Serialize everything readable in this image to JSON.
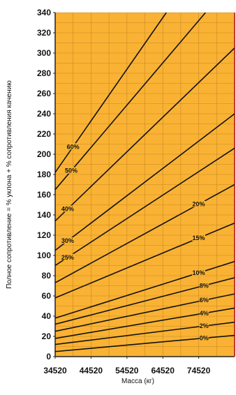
{
  "chart_data": {
    "type": "line",
    "xlabel": "Масса (кг)",
    "ylabel": "Полное сопротивление = % уклона + % сопротивления качению",
    "xlim": [
      34520,
      84520
    ],
    "ylim": [
      0,
      340
    ],
    "xticks": [
      {
        "value": 34520,
        "label": "34520"
      },
      {
        "value": 44520,
        "label": "44520"
      },
      {
        "value": 54520,
        "label": "54520"
      },
      {
        "value": 64520,
        "label": "64520"
      },
      {
        "value": 74520,
        "label": "74520"
      }
    ],
    "yticks": [
      {
        "value": 0,
        "label": "0"
      },
      {
        "value": 20,
        "label": "20"
      },
      {
        "value": 40,
        "label": "40"
      },
      {
        "value": 60,
        "label": "60"
      },
      {
        "value": 80,
        "label": "80"
      },
      {
        "value": 100,
        "label": "100"
      },
      {
        "value": 120,
        "label": "120"
      },
      {
        "value": 140,
        "label": "140"
      },
      {
        "value": 160,
        "label": "160"
      },
      {
        "value": 180,
        "label": "180"
      },
      {
        "value": 200,
        "label": "200"
      },
      {
        "value": 220,
        "label": "220"
      },
      {
        "value": 240,
        "label": "240"
      },
      {
        "value": 260,
        "label": "260"
      },
      {
        "value": 280,
        "label": "280"
      },
      {
        "value": 300,
        "label": "300"
      },
      {
        "value": 320,
        "label": "320"
      },
      {
        "value": 340,
        "label": "340"
      }
    ],
    "grid": true,
    "background_color": "#F9B233",
    "line_color": "#111111",
    "border_right_color": "#C0392B",
    "series": [
      {
        "name": "0%",
        "x": [
          34520,
          84520
        ],
        "y": [
          5,
          21
        ],
        "label_at": 76000
      },
      {
        "name": "2%",
        "x": [
          34520,
          84520
        ],
        "y": [
          12,
          34
        ],
        "label_at": 76000
      },
      {
        "name": "4%",
        "x": [
          34520,
          84520
        ],
        "y": [
          18,
          48
        ],
        "label_at": 76000
      },
      {
        "name": "6%",
        "x": [
          34520,
          84520
        ],
        "y": [
          25,
          62
        ],
        "label_at": 76000
      },
      {
        "name": "8%",
        "x": [
          34520,
          84520
        ],
        "y": [
          32,
          78
        ],
        "label_at": 76000
      },
      {
        "name": "10%",
        "x": [
          34520,
          84520
        ],
        "y": [
          38,
          94
        ],
        "label_at": 74500
      },
      {
        "name": "15%",
        "x": [
          34520,
          84520
        ],
        "y": [
          58,
          132
        ],
        "label_at": 74500
      },
      {
        "name": "20%",
        "x": [
          34520,
          84520
        ],
        "y": [
          73,
          170
        ],
        "label_at": 74500
      },
      {
        "name": "25%",
        "x": [
          34520,
          84520
        ],
        "y": [
          90,
          206
        ],
        "label_at": 38000
      },
      {
        "name": "30%",
        "x": [
          34520,
          84520
        ],
        "y": [
          105,
          240
        ],
        "label_at": 38000
      },
      {
        "name": "40%",
        "x": [
          34520,
          84520
        ],
        "y": [
          134,
          305
        ],
        "label_at": 38000
      },
      {
        "name": "50%",
        "x": [
          34520,
          76420
        ],
        "y": [
          165,
          340
        ],
        "label_at": 39000
      },
      {
        "name": "60%",
        "x": [
          34520,
          65500
        ],
        "y": [
          182,
          340
        ],
        "label_at": 39500
      }
    ]
  }
}
